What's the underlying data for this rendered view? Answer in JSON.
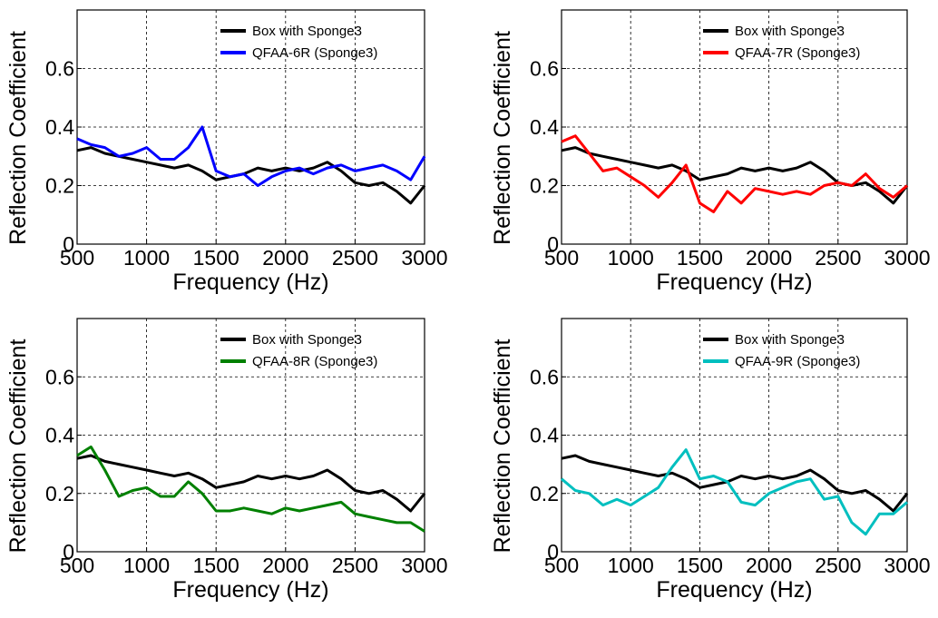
{
  "colors": {
    "box": "#000000",
    "blue": "#0000ff",
    "red": "#ff0000",
    "green": "#008000",
    "cyan": "#00bfbf"
  },
  "chart_data": [
    {
      "type": "line",
      "xlabel": "Frequency (Hz)",
      "ylabel": "Reflection Coefficient",
      "xlim": [
        500,
        3000
      ],
      "ylim": [
        0,
        0.8
      ],
      "xticks": [
        "500",
        "1000",
        "1500",
        "2000",
        "2500",
        "3000"
      ],
      "yticks": [
        "0",
        "0.2",
        "0.4",
        "0.6"
      ],
      "grid": true,
      "legend_position": "top-right",
      "x": [
        500,
        600,
        700,
        800,
        900,
        1000,
        1100,
        1200,
        1300,
        1400,
        1500,
        1600,
        1700,
        1800,
        1900,
        2000,
        2100,
        2200,
        2300,
        2400,
        2500,
        2600,
        2700,
        2800,
        2900,
        3000
      ],
      "series": [
        {
          "name": "Box with Sponge3",
          "color": "#000000",
          "values": [
            0.32,
            0.33,
            0.31,
            0.3,
            0.29,
            0.28,
            0.27,
            0.26,
            0.27,
            0.25,
            0.22,
            0.23,
            0.24,
            0.26,
            0.25,
            0.26,
            0.25,
            0.26,
            0.28,
            0.25,
            0.21,
            0.2,
            0.21,
            0.18,
            0.14,
            0.2
          ]
        },
        {
          "name": "QFAA-6R (Sponge3)",
          "color": "#0000ff",
          "values": [
            0.36,
            0.34,
            0.33,
            0.3,
            0.31,
            0.33,
            0.29,
            0.29,
            0.33,
            0.4,
            0.25,
            0.23,
            0.24,
            0.2,
            0.23,
            0.25,
            0.26,
            0.24,
            0.26,
            0.27,
            0.25,
            0.26,
            0.27,
            0.25,
            0.22,
            0.3
          ]
        }
      ]
    },
    {
      "type": "line",
      "xlabel": "Frequency (Hz)",
      "ylabel": "Reflection Coefficient",
      "xlim": [
        500,
        3000
      ],
      "ylim": [
        0,
        0.8
      ],
      "xticks": [
        "500",
        "1000",
        "1500",
        "2000",
        "2500",
        "3000"
      ],
      "yticks": [
        "0",
        "0.2",
        "0.4",
        "0.6"
      ],
      "grid": true,
      "legend_position": "top-right",
      "x": [
        500,
        600,
        700,
        800,
        900,
        1000,
        1100,
        1200,
        1300,
        1400,
        1500,
        1600,
        1700,
        1800,
        1900,
        2000,
        2100,
        2200,
        2300,
        2400,
        2500,
        2600,
        2700,
        2800,
        2900,
        3000
      ],
      "series": [
        {
          "name": "Box with Sponge3",
          "color": "#000000",
          "values": [
            0.32,
            0.33,
            0.31,
            0.3,
            0.29,
            0.28,
            0.27,
            0.26,
            0.27,
            0.25,
            0.22,
            0.23,
            0.24,
            0.26,
            0.25,
            0.26,
            0.25,
            0.26,
            0.28,
            0.25,
            0.21,
            0.2,
            0.21,
            0.18,
            0.14,
            0.2
          ]
        },
        {
          "name": "QFAA-7R (Sponge3)",
          "color": "#ff0000",
          "values": [
            0.35,
            0.37,
            0.31,
            0.25,
            0.26,
            0.23,
            0.2,
            0.16,
            0.21,
            0.27,
            0.14,
            0.11,
            0.18,
            0.14,
            0.19,
            0.18,
            0.17,
            0.18,
            0.17,
            0.2,
            0.21,
            0.2,
            0.24,
            0.19,
            0.16,
            0.2
          ]
        }
      ]
    },
    {
      "type": "line",
      "xlabel": "Frequency (Hz)",
      "ylabel": "Reflection Coefficient",
      "xlim": [
        500,
        3000
      ],
      "ylim": [
        0,
        0.8
      ],
      "xticks": [
        "500",
        "1000",
        "1500",
        "2000",
        "2500",
        "3000"
      ],
      "yticks": [
        "0",
        "0.2",
        "0.4",
        "0.6"
      ],
      "grid": true,
      "legend_position": "top-right",
      "x": [
        500,
        600,
        700,
        800,
        900,
        1000,
        1100,
        1200,
        1300,
        1400,
        1500,
        1600,
        1700,
        1800,
        1900,
        2000,
        2100,
        2200,
        2300,
        2400,
        2500,
        2600,
        2700,
        2800,
        2900,
        3000
      ],
      "series": [
        {
          "name": "Box with Sponge3",
          "color": "#000000",
          "values": [
            0.32,
            0.33,
            0.31,
            0.3,
            0.29,
            0.28,
            0.27,
            0.26,
            0.27,
            0.25,
            0.22,
            0.23,
            0.24,
            0.26,
            0.25,
            0.26,
            0.25,
            0.26,
            0.28,
            0.25,
            0.21,
            0.2,
            0.21,
            0.18,
            0.14,
            0.2
          ]
        },
        {
          "name": "QFAA-8R (Sponge3)",
          "color": "#008000",
          "values": [
            0.33,
            0.36,
            0.28,
            0.19,
            0.21,
            0.22,
            0.19,
            0.19,
            0.24,
            0.2,
            0.14,
            0.14,
            0.15,
            0.14,
            0.13,
            0.15,
            0.14,
            0.15,
            0.16,
            0.17,
            0.13,
            0.12,
            0.11,
            0.1,
            0.1,
            0.07
          ]
        }
      ]
    },
    {
      "type": "line",
      "xlabel": "Frequency (Hz)",
      "ylabel": "Reflection Coefficient",
      "xlim": [
        500,
        3000
      ],
      "ylim": [
        0,
        0.8
      ],
      "xticks": [
        "500",
        "1000",
        "1500",
        "2000",
        "2500",
        "3000"
      ],
      "yticks": [
        "0",
        "0.2",
        "0.4",
        "0.6"
      ],
      "grid": true,
      "legend_position": "top-right",
      "x": [
        500,
        600,
        700,
        800,
        900,
        1000,
        1100,
        1200,
        1300,
        1400,
        1500,
        1600,
        1700,
        1800,
        1900,
        2000,
        2100,
        2200,
        2300,
        2400,
        2500,
        2600,
        2700,
        2800,
        2900,
        3000
      ],
      "series": [
        {
          "name": "Box with Sponge3",
          "color": "#000000",
          "values": [
            0.32,
            0.33,
            0.31,
            0.3,
            0.29,
            0.28,
            0.27,
            0.26,
            0.27,
            0.25,
            0.22,
            0.23,
            0.24,
            0.26,
            0.25,
            0.26,
            0.25,
            0.26,
            0.28,
            0.25,
            0.21,
            0.2,
            0.21,
            0.18,
            0.14,
            0.2
          ]
        },
        {
          "name": "QFAA-9R (Sponge3)",
          "color": "#00bfbf",
          "values": [
            0.25,
            0.21,
            0.2,
            0.16,
            0.18,
            0.16,
            0.19,
            0.22,
            0.29,
            0.35,
            0.25,
            0.26,
            0.24,
            0.17,
            0.16,
            0.2,
            0.22,
            0.24,
            0.25,
            0.18,
            0.19,
            0.1,
            0.06,
            0.13,
            0.13,
            0.17
          ]
        }
      ]
    }
  ]
}
